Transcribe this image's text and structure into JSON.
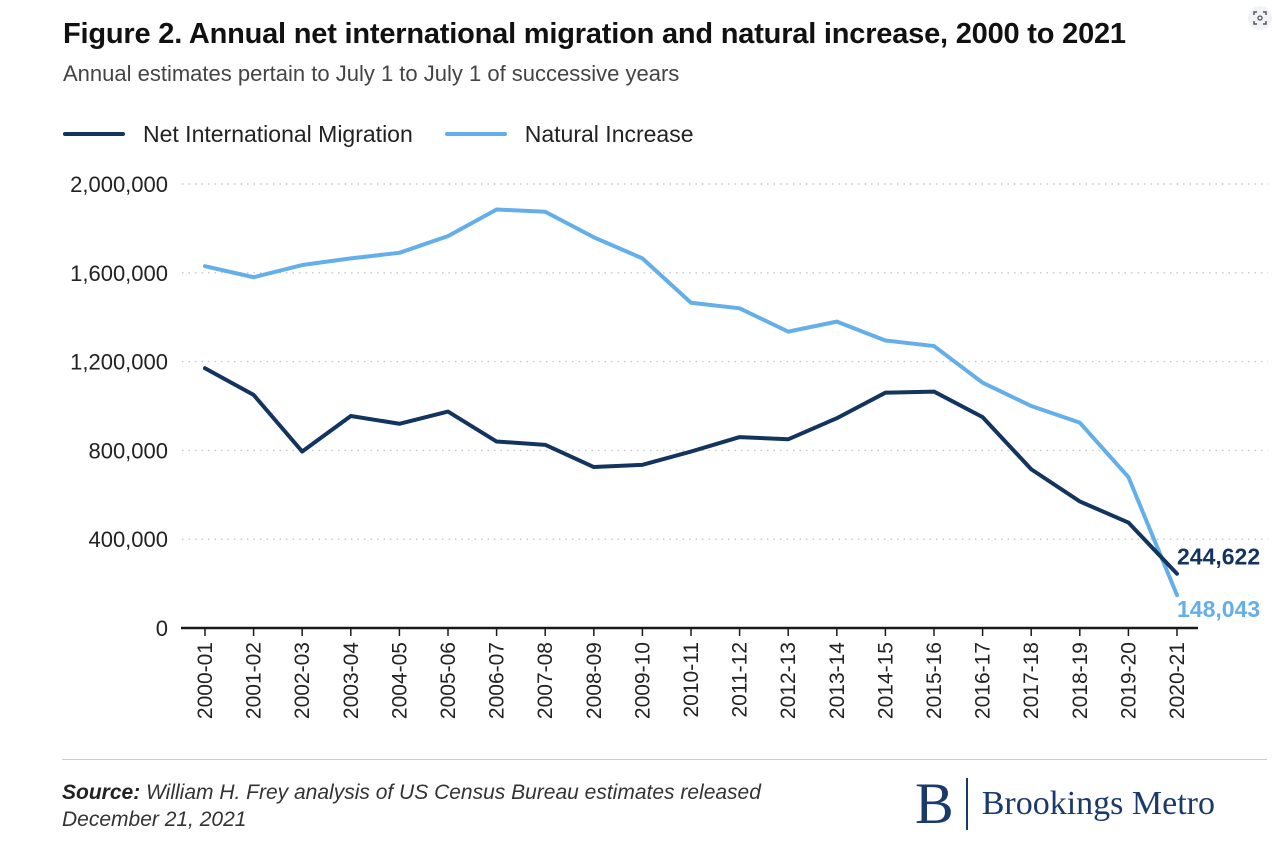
{
  "title": "Figure 2. Annual net international migration and natural increase, 2000 to 2021",
  "subtitle": "Annual estimates pertain to July 1 to July 1 of successive years",
  "legend": {
    "items": [
      {
        "label": "Net International Migration",
        "color": "#13345e"
      },
      {
        "label": "Natural Increase",
        "color": "#64aeea"
      }
    ]
  },
  "source": {
    "label": "Source:",
    "text": "William H. Frey analysis of US Census Bureau estimates released December 21, 2021"
  },
  "logo": {
    "mark": "B",
    "text": "Brookings Metro"
  },
  "icon": "scan-icon",
  "chart_data": {
    "type": "line",
    "title": "Figure 2. Annual net international migration and natural increase, 2000 to 2021",
    "subtitle": "Annual estimates pertain to July 1 to July 1 of successive years",
    "categories": [
      "2000-01",
      "2001-02",
      "2002-03",
      "2003-04",
      "2004-05",
      "2005-06",
      "2006-07",
      "2007-08",
      "2008-09",
      "2009-10",
      "2010-11",
      "2011-12",
      "2012-13",
      "2013-14",
      "2014-15",
      "2015-16",
      "2016-17",
      "2017-18",
      "2018-19",
      "2019-20",
      "2020-21"
    ],
    "yticks": [
      0,
      400000,
      800000,
      1200000,
      1600000,
      2000000
    ],
    "ytick_labels": [
      "0",
      "400,000",
      "800,000",
      "1,200,000",
      "1,600,000",
      "2,000,000"
    ],
    "ylim": [
      0,
      2000000
    ],
    "grid": true,
    "legend_position": "top-left",
    "series": [
      {
        "name": "Net International Migration",
        "color": "#13345e",
        "values": [
          1170000,
          1050000,
          795000,
          955000,
          920000,
          975000,
          840000,
          825000,
          725000,
          735000,
          795000,
          860000,
          850000,
          945000,
          1060000,
          1065000,
          950000,
          715000,
          570000,
          475000,
          244622
        ],
        "end_label": "244,622"
      },
      {
        "name": "Natural Increase",
        "color": "#64aeea",
        "values": [
          1630000,
          1580000,
          1635000,
          1665000,
          1690000,
          1765000,
          1885000,
          1875000,
          1760000,
          1665000,
          1465000,
          1440000,
          1335000,
          1380000,
          1295000,
          1270000,
          1105000,
          1000000,
          925000,
          680000,
          148043
        ],
        "end_label": "148,043"
      }
    ]
  }
}
